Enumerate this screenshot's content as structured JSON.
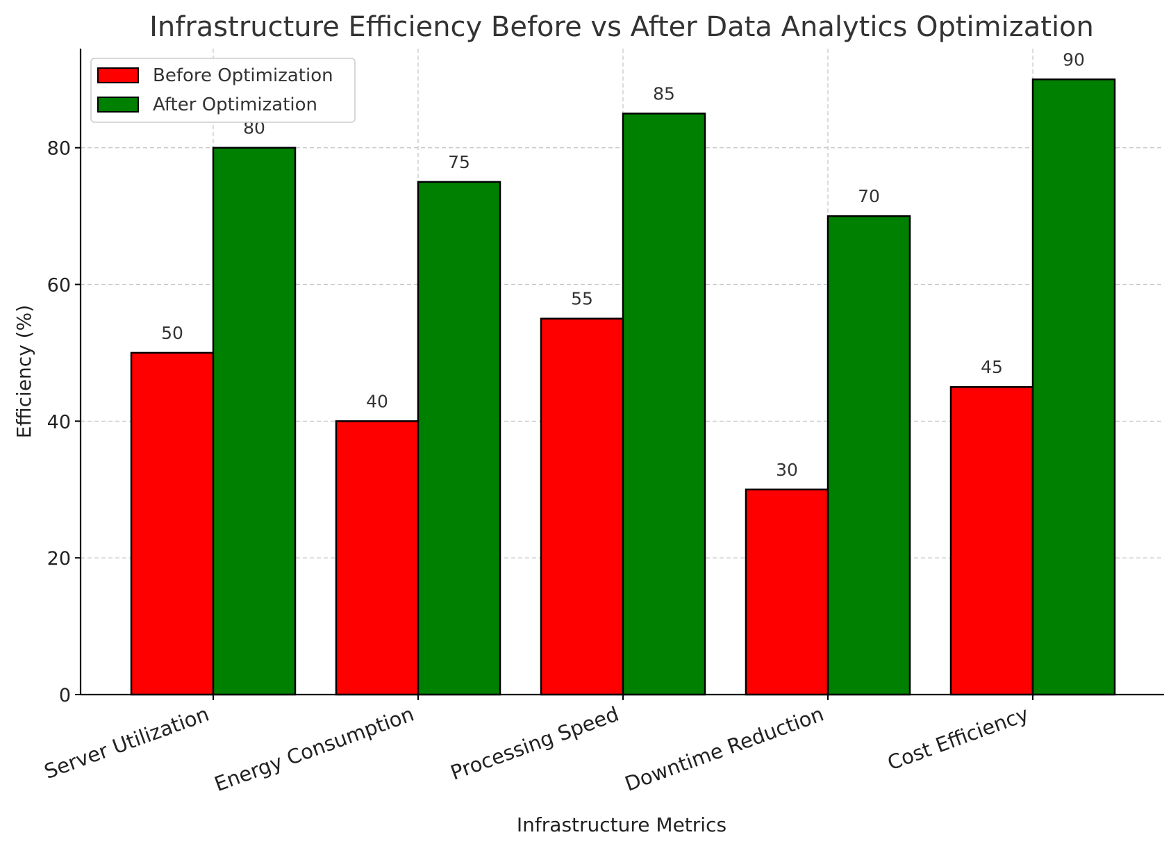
{
  "chart_data": {
    "type": "bar",
    "title": "Infrastructure Efficiency Before vs After Data Analytics Optimization",
    "xlabel": "Infrastructure Metrics",
    "ylabel": "Efficiency (%)",
    "categories": [
      "Server Utilization",
      "Energy Consumption",
      "Processing Speed",
      "Downtime Reduction",
      "Cost Efficiency"
    ],
    "series": [
      {
        "name": "Before Optimization",
        "color": "#ff0000",
        "values": [
          50,
          40,
          55,
          30,
          45
        ]
      },
      {
        "name": "After Optimization",
        "color": "#008000",
        "values": [
          80,
          75,
          85,
          70,
          90
        ]
      }
    ],
    "ylim": [
      0,
      94.5
    ],
    "yticks": [
      0,
      20,
      40,
      60,
      80
    ],
    "grid": true,
    "legend_position": "top-left",
    "xtick_rotation": 20
  }
}
